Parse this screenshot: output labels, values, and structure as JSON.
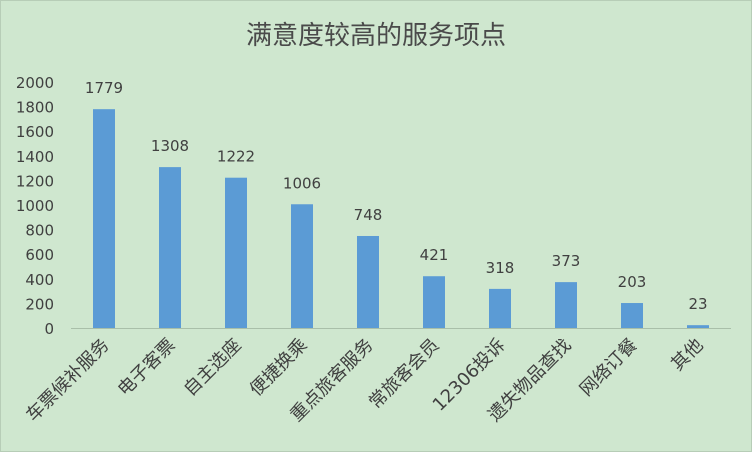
{
  "chart_data": {
    "type": "bar",
    "title": "满意度较高的服务项点",
    "xlabel": "",
    "ylabel": "",
    "categories": [
      "车票候补服务",
      "电子客票",
      "自主选座",
      "便捷换乘",
      "重点旅客服务",
      "常旅客会员",
      "12306投诉",
      "遗失物品查找",
      "网络订餐",
      "其他"
    ],
    "values": [
      1779,
      1308,
      1222,
      1006,
      748,
      421,
      318,
      373,
      203,
      23
    ],
    "ylim": [
      0,
      2000
    ],
    "yticks": [
      0,
      200,
      400,
      600,
      800,
      1000,
      1200,
      1400,
      1600,
      1800,
      2000
    ],
    "grid": false,
    "legend": "none",
    "bar_color": "#5b9bd5",
    "background_color": "#cfe7cf"
  }
}
